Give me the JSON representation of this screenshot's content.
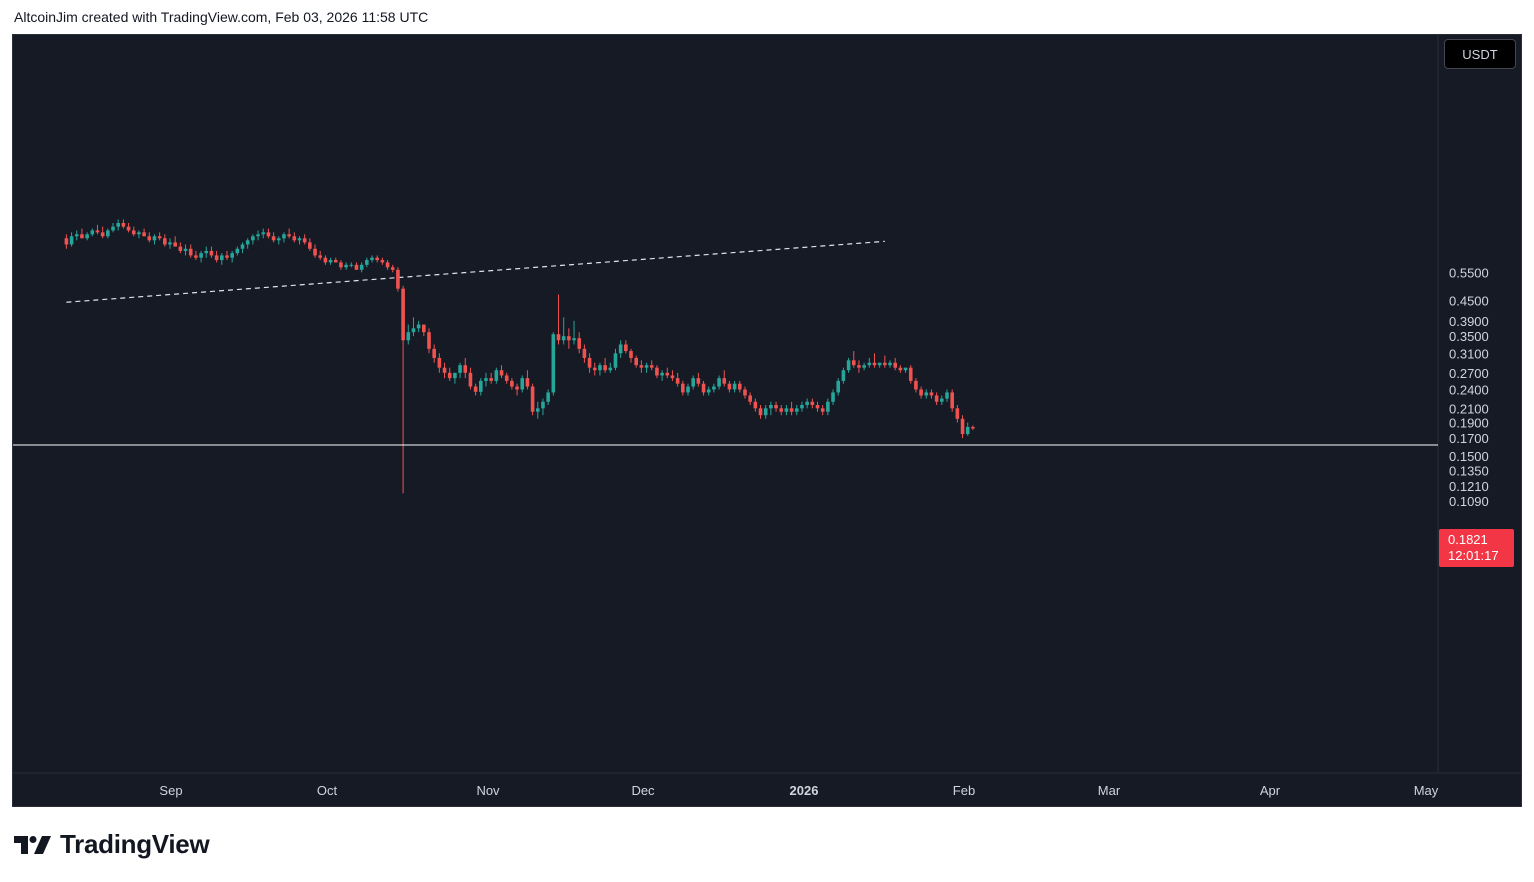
{
  "header": {
    "caption": "AltcoinJim created with TradingView.com, Feb 03, 2026 11:58 UTC"
  },
  "footer": {
    "brand_name": "TradingView",
    "logo_icon": "tradingview-logo-icon"
  },
  "colors": {
    "background": "#161a25",
    "up_candle": "#26a69a",
    "down_candle": "#ef5350",
    "axis_text": "#d1d4dc",
    "price_tag": "#f23645",
    "support_line": "#ffffff"
  },
  "chart_data": {
    "type": "candlestick",
    "symbol_currency": "USDT",
    "scale": "log",
    "y_ticks": [
      "0.5500",
      "0.4500",
      "0.3900",
      "0.3500",
      "0.3100",
      "0.2700",
      "0.2400",
      "0.2100",
      "0.1900",
      "0.1700",
      "0.1500",
      "0.1350",
      "0.1210",
      "0.1090"
    ],
    "x_ticks": [
      "Sep",
      "Oct",
      "Nov",
      "Dec",
      "2026",
      "Feb",
      "Mar",
      "Apr",
      "May"
    ],
    "x_tick_bold": "2026",
    "current_price": "0.1821",
    "countdown": "12:01:17",
    "grid": false,
    "legend": "none",
    "horizontal_support_level": 0.162,
    "dashed_trendline": {
      "start": {
        "date": "2025-08-12",
        "value": 0.445
      },
      "end": {
        "date": "2026-01-17",
        "value": 0.685
      }
    },
    "candles": [
      [
        "2025-08-12",
        0.7,
        0.72,
        0.65,
        0.67
      ],
      [
        "2025-08-13",
        0.67,
        0.73,
        0.66,
        0.71
      ],
      [
        "2025-08-14",
        0.71,
        0.74,
        0.69,
        0.72
      ],
      [
        "2025-08-15",
        0.72,
        0.75,
        0.7,
        0.7
      ],
      [
        "2025-08-16",
        0.7,
        0.73,
        0.69,
        0.72
      ],
      [
        "2025-08-17",
        0.72,
        0.75,
        0.71,
        0.74
      ],
      [
        "2025-08-18",
        0.74,
        0.77,
        0.72,
        0.73
      ],
      [
        "2025-08-19",
        0.73,
        0.76,
        0.7,
        0.71
      ],
      [
        "2025-08-20",
        0.71,
        0.75,
        0.7,
        0.74
      ],
      [
        "2025-08-21",
        0.74,
        0.78,
        0.73,
        0.76
      ],
      [
        "2025-08-22",
        0.76,
        0.8,
        0.74,
        0.78
      ],
      [
        "2025-08-23",
        0.78,
        0.8,
        0.75,
        0.76
      ],
      [
        "2025-08-24",
        0.76,
        0.78,
        0.73,
        0.74
      ],
      [
        "2025-08-25",
        0.74,
        0.76,
        0.71,
        0.72
      ],
      [
        "2025-08-26",
        0.72,
        0.74,
        0.7,
        0.73
      ],
      [
        "2025-08-27",
        0.73,
        0.75,
        0.71,
        0.71
      ],
      [
        "2025-08-28",
        0.71,
        0.73,
        0.68,
        0.69
      ],
      [
        "2025-08-29",
        0.69,
        0.72,
        0.67,
        0.71
      ],
      [
        "2025-08-30",
        0.71,
        0.73,
        0.69,
        0.7
      ],
      [
        "2025-08-31",
        0.7,
        0.72,
        0.66,
        0.67
      ],
      [
        "2025-09-01",
        0.67,
        0.7,
        0.65,
        0.68
      ],
      [
        "2025-09-02",
        0.68,
        0.71,
        0.66,
        0.66
      ],
      [
        "2025-09-03",
        0.66,
        0.68,
        0.63,
        0.64
      ],
      [
        "2025-09-04",
        0.64,
        0.67,
        0.62,
        0.65
      ],
      [
        "2025-09-05",
        0.65,
        0.67,
        0.61,
        0.62
      ],
      [
        "2025-09-06",
        0.62,
        0.64,
        0.6,
        0.61
      ],
      [
        "2025-09-07",
        0.61,
        0.64,
        0.59,
        0.63
      ],
      [
        "2025-09-08",
        0.63,
        0.66,
        0.61,
        0.64
      ],
      [
        "2025-09-09",
        0.64,
        0.66,
        0.61,
        0.62
      ],
      [
        "2025-09-10",
        0.62,
        0.64,
        0.59,
        0.6
      ],
      [
        "2025-09-11",
        0.6,
        0.63,
        0.58,
        0.62
      ],
      [
        "2025-09-12",
        0.62,
        0.64,
        0.6,
        0.61
      ],
      [
        "2025-09-13",
        0.61,
        0.64,
        0.59,
        0.63
      ],
      [
        "2025-09-14",
        0.63,
        0.66,
        0.62,
        0.65
      ],
      [
        "2025-09-15",
        0.65,
        0.68,
        0.63,
        0.67
      ],
      [
        "2025-09-16",
        0.67,
        0.7,
        0.65,
        0.69
      ],
      [
        "2025-09-17",
        0.69,
        0.72,
        0.67,
        0.71
      ],
      [
        "2025-09-18",
        0.71,
        0.74,
        0.69,
        0.72
      ],
      [
        "2025-09-19",
        0.72,
        0.75,
        0.7,
        0.73
      ],
      [
        "2025-09-20",
        0.73,
        0.75,
        0.7,
        0.71
      ],
      [
        "2025-09-21",
        0.71,
        0.73,
        0.68,
        0.69
      ],
      [
        "2025-09-22",
        0.69,
        0.71,
        0.67,
        0.7
      ],
      [
        "2025-09-23",
        0.7,
        0.73,
        0.68,
        0.72
      ],
      [
        "2025-09-24",
        0.72,
        0.75,
        0.7,
        0.71
      ],
      [
        "2025-09-25",
        0.71,
        0.73,
        0.68,
        0.69
      ],
      [
        "2025-09-26",
        0.69,
        0.71,
        0.67,
        0.7
      ],
      [
        "2025-09-27",
        0.7,
        0.72,
        0.67,
        0.68
      ],
      [
        "2025-09-28",
        0.68,
        0.7,
        0.64,
        0.65
      ],
      [
        "2025-09-29",
        0.65,
        0.67,
        0.61,
        0.62
      ],
      [
        "2025-09-30",
        0.62,
        0.64,
        0.6,
        0.61
      ],
      [
        "2025-10-01",
        0.61,
        0.62,
        0.58,
        0.59
      ],
      [
        "2025-10-02",
        0.59,
        0.61,
        0.58,
        0.6
      ],
      [
        "2025-10-03",
        0.6,
        0.61,
        0.59,
        0.59
      ],
      [
        "2025-10-04",
        0.59,
        0.6,
        0.56,
        0.57
      ],
      [
        "2025-10-05",
        0.57,
        0.59,
        0.56,
        0.58
      ],
      [
        "2025-10-06",
        0.58,
        0.59,
        0.57,
        0.58
      ],
      [
        "2025-10-07",
        0.58,
        0.59,
        0.56,
        0.56
      ],
      [
        "2025-10-08",
        0.56,
        0.59,
        0.55,
        0.58
      ],
      [
        "2025-10-09",
        0.58,
        0.61,
        0.57,
        0.6
      ],
      [
        "2025-10-10",
        0.6,
        0.62,
        0.59,
        0.61
      ],
      [
        "2025-10-11",
        0.61,
        0.62,
        0.59,
        0.6
      ],
      [
        "2025-10-12",
        0.6,
        0.61,
        0.58,
        0.59
      ],
      [
        "2025-10-13",
        0.59,
        0.6,
        0.56,
        0.57
      ],
      [
        "2025-10-14",
        0.57,
        0.58,
        0.55,
        0.56
      ],
      [
        "2025-10-15",
        0.56,
        0.57,
        0.48,
        0.49
      ],
      [
        "2025-10-16",
        0.49,
        0.5,
        0.115,
        0.34
      ],
      [
        "2025-10-17",
        0.34,
        0.38,
        0.33,
        0.36
      ],
      [
        "2025-10-18",
        0.36,
        0.4,
        0.35,
        0.37
      ],
      [
        "2025-10-19",
        0.37,
        0.39,
        0.36,
        0.38
      ],
      [
        "2025-10-20",
        0.38,
        0.38,
        0.35,
        0.36
      ],
      [
        "2025-10-21",
        0.36,
        0.37,
        0.31,
        0.32
      ],
      [
        "2025-10-22",
        0.32,
        0.33,
        0.29,
        0.3
      ],
      [
        "2025-10-23",
        0.3,
        0.31,
        0.27,
        0.28
      ],
      [
        "2025-10-24",
        0.28,
        0.29,
        0.26,
        0.27
      ],
      [
        "2025-10-25",
        0.27,
        0.28,
        0.255,
        0.26
      ],
      [
        "2025-10-26",
        0.26,
        0.27,
        0.25,
        0.27
      ],
      [
        "2025-10-27",
        0.27,
        0.29,
        0.26,
        0.285
      ],
      [
        "2025-10-28",
        0.285,
        0.3,
        0.26,
        0.27
      ],
      [
        "2025-10-29",
        0.27,
        0.28,
        0.24,
        0.245
      ],
      [
        "2025-10-30",
        0.245,
        0.25,
        0.23,
        0.236
      ],
      [
        "2025-10-31",
        0.236,
        0.26,
        0.23,
        0.255
      ],
      [
        "2025-11-01",
        0.255,
        0.27,
        0.245,
        0.26
      ],
      [
        "2025-11-02",
        0.26,
        0.27,
        0.25,
        0.255
      ],
      [
        "2025-11-03",
        0.255,
        0.28,
        0.25,
        0.275
      ],
      [
        "2025-11-04",
        0.275,
        0.285,
        0.26,
        0.265
      ],
      [
        "2025-11-05",
        0.265,
        0.27,
        0.25,
        0.255
      ],
      [
        "2025-11-06",
        0.255,
        0.26,
        0.24,
        0.245
      ],
      [
        "2025-11-07",
        0.245,
        0.25,
        0.23,
        0.24
      ],
      [
        "2025-11-08",
        0.24,
        0.265,
        0.235,
        0.26
      ],
      [
        "2025-11-09",
        0.26,
        0.275,
        0.24,
        0.245
      ],
      [
        "2025-11-10",
        0.245,
        0.25,
        0.2,
        0.205
      ],
      [
        "2025-11-11",
        0.205,
        0.22,
        0.195,
        0.21
      ],
      [
        "2025-11-12",
        0.21,
        0.225,
        0.2,
        0.22
      ],
      [
        "2025-11-13",
        0.22,
        0.24,
        0.215,
        0.235
      ],
      [
        "2025-11-14",
        0.235,
        0.36,
        0.23,
        0.355
      ],
      [
        "2025-11-15",
        0.355,
        0.47,
        0.33,
        0.34
      ],
      [
        "2025-11-16",
        0.34,
        0.4,
        0.33,
        0.35
      ],
      [
        "2025-11-17",
        0.35,
        0.37,
        0.32,
        0.34
      ],
      [
        "2025-11-18",
        0.34,
        0.39,
        0.33,
        0.345
      ],
      [
        "2025-11-19",
        0.345,
        0.36,
        0.31,
        0.32
      ],
      [
        "2025-11-20",
        0.32,
        0.33,
        0.29,
        0.3
      ],
      [
        "2025-11-21",
        0.3,
        0.31,
        0.27,
        0.28
      ],
      [
        "2025-11-22",
        0.28,
        0.29,
        0.265,
        0.275
      ],
      [
        "2025-11-23",
        0.275,
        0.29,
        0.265,
        0.285
      ],
      [
        "2025-11-24",
        0.285,
        0.3,
        0.27,
        0.275
      ],
      [
        "2025-11-25",
        0.275,
        0.29,
        0.27,
        0.28
      ],
      [
        "2025-11-26",
        0.28,
        0.32,
        0.275,
        0.31
      ],
      [
        "2025-11-27",
        0.31,
        0.34,
        0.3,
        0.33
      ],
      [
        "2025-11-28",
        0.33,
        0.34,
        0.31,
        0.315
      ],
      [
        "2025-11-29",
        0.315,
        0.32,
        0.29,
        0.3
      ],
      [
        "2025-11-30",
        0.3,
        0.305,
        0.28,
        0.285
      ],
      [
        "2025-12-01",
        0.285,
        0.295,
        0.27,
        0.28
      ],
      [
        "2025-12-02",
        0.28,
        0.29,
        0.27,
        0.285
      ],
      [
        "2025-12-03",
        0.285,
        0.295,
        0.275,
        0.28
      ],
      [
        "2025-12-04",
        0.28,
        0.285,
        0.26,
        0.265
      ],
      [
        "2025-12-05",
        0.265,
        0.275,
        0.255,
        0.27
      ],
      [
        "2025-12-06",
        0.27,
        0.28,
        0.26,
        0.265
      ],
      [
        "2025-12-07",
        0.265,
        0.275,
        0.255,
        0.26
      ],
      [
        "2025-12-08",
        0.26,
        0.27,
        0.245,
        0.25
      ],
      [
        "2025-12-09",
        0.25,
        0.255,
        0.23,
        0.235
      ],
      [
        "2025-12-10",
        0.235,
        0.25,
        0.23,
        0.245
      ],
      [
        "2025-12-11",
        0.245,
        0.265,
        0.24,
        0.26
      ],
      [
        "2025-12-12",
        0.26,
        0.27,
        0.245,
        0.25
      ],
      [
        "2025-12-13",
        0.25,
        0.255,
        0.23,
        0.235
      ],
      [
        "2025-12-14",
        0.235,
        0.245,
        0.23,
        0.24
      ],
      [
        "2025-12-15",
        0.24,
        0.25,
        0.235,
        0.245
      ],
      [
        "2025-12-16",
        0.245,
        0.265,
        0.24,
        0.26
      ],
      [
        "2025-12-17",
        0.26,
        0.275,
        0.245,
        0.25
      ],
      [
        "2025-12-18",
        0.25,
        0.255,
        0.235,
        0.24
      ],
      [
        "2025-12-19",
        0.24,
        0.255,
        0.235,
        0.25
      ],
      [
        "2025-12-20",
        0.25,
        0.255,
        0.235,
        0.24
      ],
      [
        "2025-12-21",
        0.24,
        0.245,
        0.225,
        0.23
      ],
      [
        "2025-12-22",
        0.23,
        0.235,
        0.215,
        0.22
      ],
      [
        "2025-12-23",
        0.22,
        0.225,
        0.205,
        0.21
      ],
      [
        "2025-12-24",
        0.21,
        0.215,
        0.195,
        0.2
      ],
      [
        "2025-12-25",
        0.2,
        0.215,
        0.195,
        0.21
      ],
      [
        "2025-12-26",
        0.21,
        0.22,
        0.2,
        0.215
      ],
      [
        "2025-12-27",
        0.215,
        0.22,
        0.205,
        0.21
      ],
      [
        "2025-12-28",
        0.21,
        0.215,
        0.2,
        0.205
      ],
      [
        "2025-12-29",
        0.205,
        0.215,
        0.2,
        0.21
      ],
      [
        "2025-12-30",
        0.21,
        0.22,
        0.2,
        0.205
      ],
      [
        "2025-12-31",
        0.205,
        0.215,
        0.2,
        0.21
      ],
      [
        "2026-01-01",
        0.21,
        0.22,
        0.205,
        0.215
      ],
      [
        "2026-01-02",
        0.215,
        0.225,
        0.21,
        0.22
      ],
      [
        "2026-01-03",
        0.22,
        0.225,
        0.21,
        0.215
      ],
      [
        "2026-01-04",
        0.215,
        0.22,
        0.205,
        0.21
      ],
      [
        "2026-01-05",
        0.21,
        0.215,
        0.2,
        0.205
      ],
      [
        "2026-01-06",
        0.205,
        0.225,
        0.2,
        0.22
      ],
      [
        "2026-01-07",
        0.22,
        0.24,
        0.215,
        0.235
      ],
      [
        "2026-01-08",
        0.235,
        0.26,
        0.23,
        0.255
      ],
      [
        "2026-01-09",
        0.255,
        0.28,
        0.25,
        0.275
      ],
      [
        "2026-01-10",
        0.275,
        0.3,
        0.27,
        0.295
      ],
      [
        "2026-01-11",
        0.295,
        0.315,
        0.28,
        0.285
      ],
      [
        "2026-01-12",
        0.285,
        0.295,
        0.27,
        0.28
      ],
      [
        "2026-01-13",
        0.28,
        0.29,
        0.275,
        0.285
      ],
      [
        "2026-01-14",
        0.285,
        0.3,
        0.28,
        0.29
      ],
      [
        "2026-01-15",
        0.29,
        0.31,
        0.28,
        0.285
      ],
      [
        "2026-01-16",
        0.285,
        0.29,
        0.28,
        0.29
      ],
      [
        "2026-01-17",
        0.29,
        0.305,
        0.28,
        0.285
      ],
      [
        "2026-01-18",
        0.285,
        0.295,
        0.28,
        0.29
      ],
      [
        "2026-01-19",
        0.29,
        0.3,
        0.275,
        0.28
      ],
      [
        "2026-01-20",
        0.28,
        0.285,
        0.27,
        0.275
      ],
      [
        "2026-01-21",
        0.275,
        0.28,
        0.27,
        0.28
      ],
      [
        "2026-01-22",
        0.28,
        0.285,
        0.25,
        0.255
      ],
      [
        "2026-01-23",
        0.255,
        0.26,
        0.235,
        0.24
      ],
      [
        "2026-01-24",
        0.24,
        0.245,
        0.225,
        0.23
      ],
      [
        "2026-01-25",
        0.23,
        0.24,
        0.225,
        0.235
      ],
      [
        "2026-01-26",
        0.235,
        0.24,
        0.225,
        0.23
      ],
      [
        "2026-01-27",
        0.23,
        0.235,
        0.215,
        0.22
      ],
      [
        "2026-01-28",
        0.22,
        0.23,
        0.215,
        0.225
      ],
      [
        "2026-01-29",
        0.225,
        0.24,
        0.22,
        0.235
      ],
      [
        "2026-01-30",
        0.235,
        0.24,
        0.205,
        0.21
      ],
      [
        "2026-01-31",
        0.21,
        0.215,
        0.19,
        0.195
      ],
      [
        "2026-02-01",
        0.195,
        0.2,
        0.17,
        0.175
      ],
      [
        "2026-02-02",
        0.175,
        0.19,
        0.173,
        0.184
      ],
      [
        "2026-02-03",
        0.184,
        0.186,
        0.18,
        0.1821
      ]
    ]
  }
}
